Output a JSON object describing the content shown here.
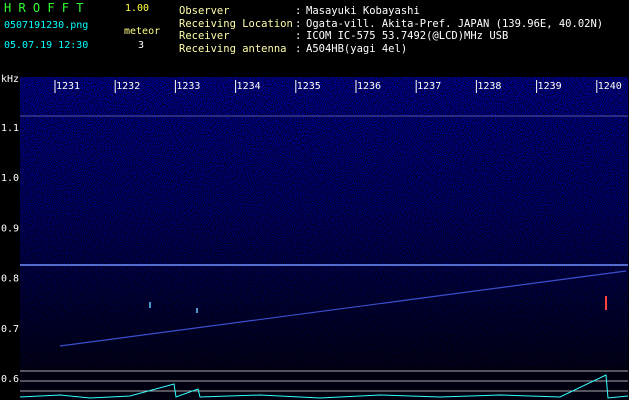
{
  "header": {
    "app_name": "H R O F F T",
    "version": "1.00",
    "file": "0507191230.png",
    "meteor_label": "meteor",
    "datetime": "05.07.19 12:30",
    "meteor_count": "3"
  },
  "info_separator": ":",
  "info": [
    {
      "label": "Observer",
      "value": "Masayuki Kobayashi"
    },
    {
      "label": "Receiving Location",
      "value": "Ogata-vill. Akita-Pref. JAPAN (139.96E, 40.02N)"
    },
    {
      "label": "Receiver",
      "value": "ICOM IC-575 53.7492(@LCD)MHz USB"
    },
    {
      "label": "Receiving antenna",
      "value": "A504HB(yagi 4el)"
    }
  ],
  "axis": {
    "y_unit": "kHz",
    "y_labels": [
      "1.1",
      "1.0",
      "0.9",
      "0.8",
      "0.7",
      "0.6"
    ],
    "x_labels": [
      "1231",
      "1232",
      "1233",
      "1234",
      "1235",
      "1236",
      "1237",
      "1238",
      "1239",
      "1240"
    ]
  }
}
